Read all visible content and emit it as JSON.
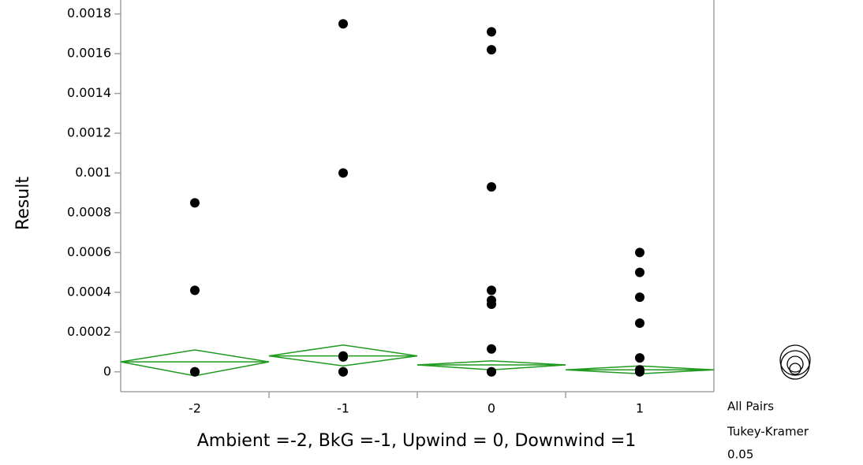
{
  "chart_data": {
    "type": "oneway",
    "ylabel": "Result",
    "xlabel": "Ambient =-2, BkG =-1, Upwind = 0, Downwind =1",
    "categories": [
      "-2",
      "-1",
      "0",
      "1"
    ],
    "points": [
      [
        0.00085,
        0.00041,
        0,
        0
      ],
      [
        0.00175,
        0.001,
        8e-05,
        7.5e-05,
        0,
        0
      ],
      [
        0.00171,
        0.00162,
        0.00093,
        0.00041,
        0.00036,
        0.00034,
        0.000115,
        0,
        0
      ],
      [
        0.0006,
        0.0005,
        0.000375,
        0.000245,
        7e-05,
        1e-05,
        0,
        0
      ]
    ],
    "means": [
      5e-05,
      8e-05,
      3.5e-05,
      1e-05
    ],
    "ci_lower": [
      -2e-05,
      3e-05,
      1e-05,
      -1e-05
    ],
    "ci_upper": [
      0.00011,
      0.000135,
      5.5e-05,
      3e-05
    ],
    "point_color": "#000000",
    "diamond_color": "#1f9a1f",
    "ylim": [
      -0.0001,
      0.00187
    ],
    "yticks": [
      0,
      0.0002,
      0.0004,
      0.0006,
      0.0008,
      0.001,
      0.0012,
      0.0014,
      0.0016,
      0.0018
    ],
    "comparison": {
      "label": "All Pairs",
      "method": "Tukey-Kramer",
      "alpha": 0.05
    }
  }
}
